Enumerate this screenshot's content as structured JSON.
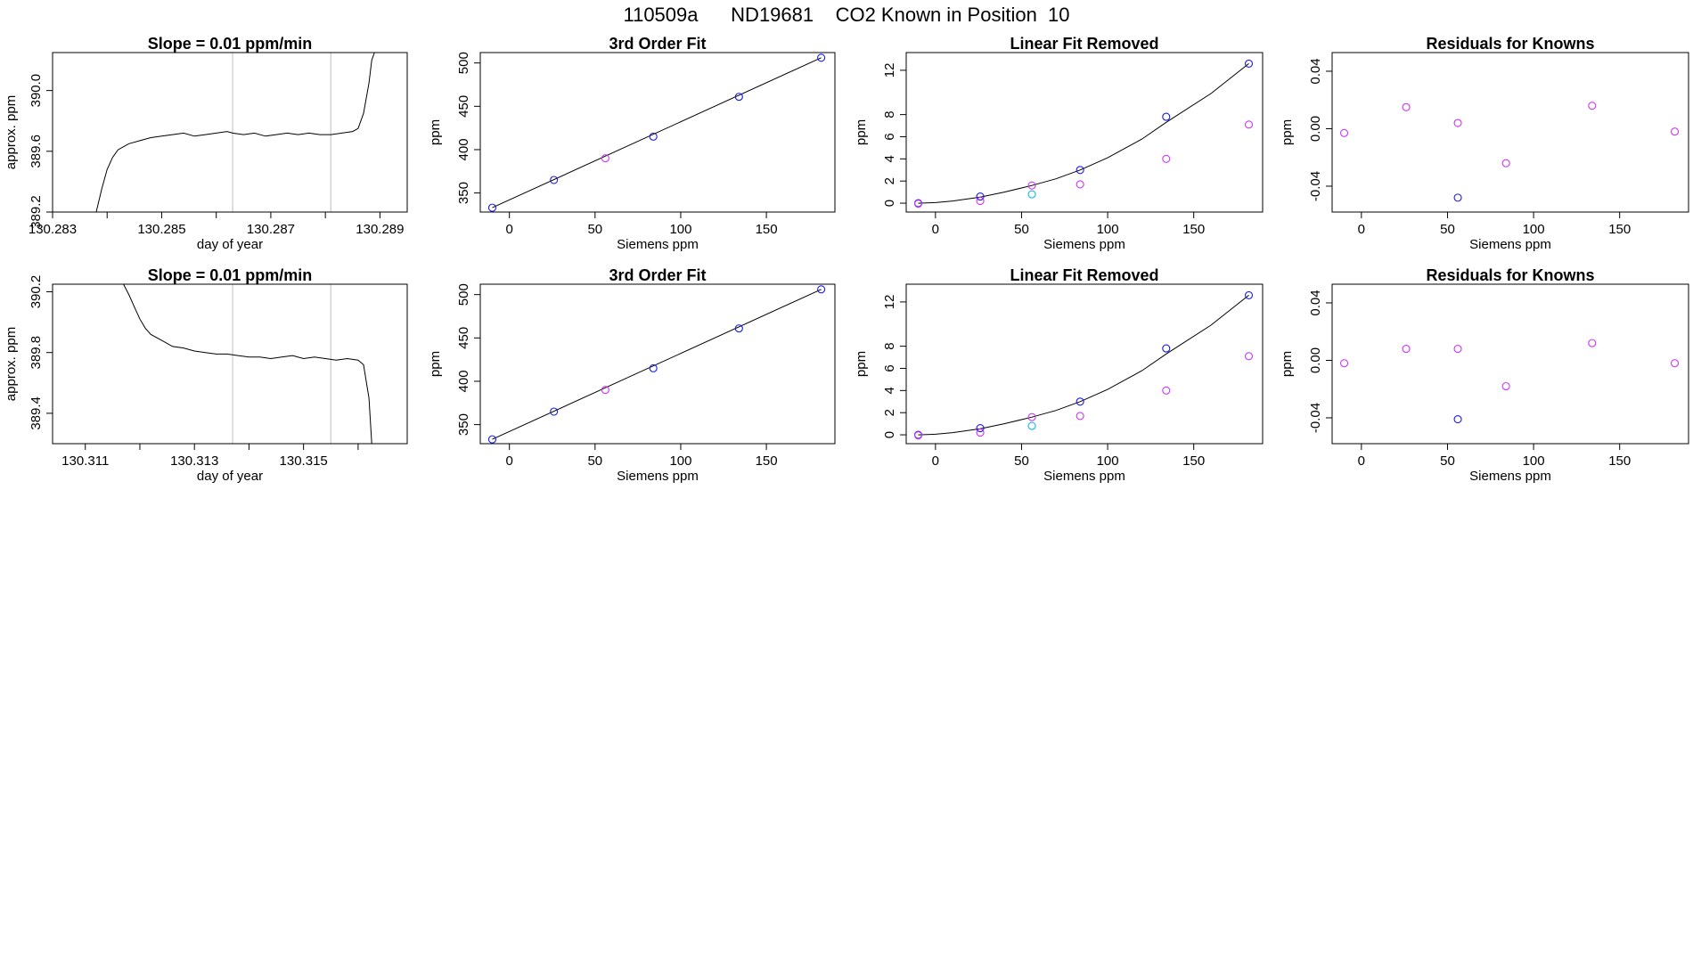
{
  "title": "110509a      ND19681    CO2 Known in Position  10",
  "colors": {
    "series_line": "#000000",
    "known": "#1a1ae6",
    "raw": "#cc33ff",
    "highlight": "#1ab8e6",
    "vline": "#c8c8c8",
    "mark": "#ff6666"
  },
  "chart_data": [
    {
      "type": "line",
      "title": "Slope =  0.01  ppm/min",
      "xlabel": "day of year",
      "ylabel": "approx. ppm",
      "xlim": [
        130.283,
        130.2895
      ],
      "ylim": [
        389.2,
        390.25
      ],
      "xticks": [
        130.283,
        130.284,
        130.285,
        130.286,
        130.287,
        130.288,
        130.289
      ],
      "xtick_labels": [
        "130.283",
        "",
        "130.285",
        "",
        "130.287",
        "",
        "130.289"
      ],
      "yticks": [
        389.2,
        389.6,
        390.0
      ],
      "ytick_labels": [
        "389.2",
        "389.6",
        "390.0"
      ],
      "vlines": [
        130.2863,
        130.2881
      ],
      "series": [
        {
          "name": "trace",
          "x": [
            130.2838,
            130.2839,
            130.284,
            130.2841,
            130.2842,
            130.2843,
            130.2844,
            130.2846,
            130.2848,
            130.285,
            130.2852,
            130.2854,
            130.2856,
            130.2858,
            130.286,
            130.2862,
            130.2863,
            130.2865,
            130.2867,
            130.2869,
            130.2871,
            130.2873,
            130.2875,
            130.2877,
            130.2879,
            130.2881,
            130.2883,
            130.2885,
            130.2886,
            130.2887,
            130.2888,
            130.28885,
            130.2889
          ],
          "values": [
            389.2,
            389.35,
            389.48,
            389.56,
            389.61,
            389.63,
            389.65,
            389.67,
            389.69,
            389.7,
            389.71,
            389.72,
            389.7,
            389.71,
            389.72,
            389.73,
            389.72,
            389.71,
            389.72,
            389.7,
            389.71,
            389.72,
            389.71,
            389.72,
            389.71,
            389.71,
            389.72,
            389.73,
            389.75,
            389.85,
            390.05,
            390.2,
            390.25
          ]
        }
      ]
    },
    {
      "type": "scatter",
      "title": "3rd Order Fit",
      "xlabel": "Siemens ppm",
      "ylabel": "ppm",
      "xlim": [
        -17,
        190
      ],
      "ylim": [
        328,
        512
      ],
      "xticks": [
        0,
        50,
        100,
        150
      ],
      "xtick_labels": [
        "0",
        "50",
        "100",
        "150"
      ],
      "yticks": [
        350,
        400,
        450,
        500
      ],
      "ytick_labels": [
        "350",
        "400",
        "450",
        "500"
      ],
      "fit": {
        "x": [
          -10,
          182
        ],
        "values": [
          333,
          506
        ]
      },
      "points": [
        {
          "x": -10,
          "y": 333,
          "color": "known"
        },
        {
          "x": 26,
          "y": 365,
          "color": "known"
        },
        {
          "x": 56,
          "y": 390,
          "color": "raw"
        },
        {
          "x": 84,
          "y": 415,
          "color": "known"
        },
        {
          "x": 134,
          "y": 461,
          "color": "known"
        },
        {
          "x": 182,
          "y": 506,
          "color": "known"
        }
      ]
    },
    {
      "type": "scatter",
      "title": "Linear Fit Removed",
      "xlabel": "Siemens ppm",
      "ylabel": "ppm",
      "xlim": [
        -17,
        190
      ],
      "ylim": [
        -0.8,
        13.6
      ],
      "xticks": [
        0,
        50,
        100,
        150
      ],
      "xtick_labels": [
        "0",
        "50",
        "100",
        "150"
      ],
      "yticks": [
        0,
        2,
        4,
        6,
        8,
        12
      ],
      "ytick_labels": [
        "0",
        "2",
        "4",
        "6",
        "8",
        "12"
      ],
      "fit": {
        "x": [
          -10,
          0,
          10,
          26,
          40,
          56,
          70,
          84,
          100,
          120,
          134,
          160,
          182
        ],
        "values": [
          0,
          0.05,
          0.2,
          0.55,
          1.0,
          1.6,
          2.2,
          3.0,
          4.1,
          5.8,
          7.3,
          9.9,
          12.6
        ]
      },
      "points": [
        {
          "x": -10,
          "y": 0,
          "color": "known"
        },
        {
          "x": -10,
          "y": -0.05,
          "color": "raw"
        },
        {
          "x": 26,
          "y": 0.6,
          "color": "known"
        },
        {
          "x": 26,
          "y": 0.2,
          "color": "raw"
        },
        {
          "x": 56,
          "y": 1.6,
          "color": "raw"
        },
        {
          "x": 56,
          "y": 0.8,
          "color": "highlight"
        },
        {
          "x": 84,
          "y": 3.0,
          "color": "known"
        },
        {
          "x": 84,
          "y": 1.7,
          "color": "raw"
        },
        {
          "x": 134,
          "y": 7.8,
          "color": "known"
        },
        {
          "x": 134,
          "y": 4.0,
          "color": "raw"
        },
        {
          "x": 182,
          "y": 12.6,
          "color": "known"
        },
        {
          "x": 182,
          "y": 7.1,
          "color": "raw"
        }
      ]
    },
    {
      "type": "scatter",
      "title": "Residuals for Knowns",
      "xlabel": "Siemens ppm",
      "ylabel": "ppm",
      "xlim": [
        -17,
        190
      ],
      "ylim": [
        -0.058,
        0.053
      ],
      "xticks": [
        0,
        50,
        100,
        150
      ],
      "xtick_labels": [
        "0",
        "50",
        "100",
        "150"
      ],
      "yticks": [
        -0.04,
        0.0,
        0.04
      ],
      "ytick_labels": [
        "-0.04",
        "0.00",
        "0.04"
      ],
      "points": [
        {
          "x": -10,
          "y": -0.003,
          "color": "raw"
        },
        {
          "x": 26,
          "y": 0.015,
          "color": "raw"
        },
        {
          "x": 56,
          "y": 0.004,
          "color": "raw"
        },
        {
          "x": 56,
          "y": -0.048,
          "color": "known"
        },
        {
          "x": 84,
          "y": -0.024,
          "color": "raw"
        },
        {
          "x": 134,
          "y": 0.016,
          "color": "raw"
        },
        {
          "x": 182,
          "y": -0.002,
          "color": "raw"
        }
      ]
    },
    {
      "type": "line",
      "title": "Slope =  0.01  ppm/min",
      "xlabel": "day of year",
      "ylabel": "approx. ppm",
      "xlim": [
        130.3104,
        130.3169
      ],
      "ylim": [
        389.2,
        390.25
      ],
      "xticks": [
        130.311,
        130.312,
        130.313,
        130.314,
        130.315,
        130.316
      ],
      "xtick_labels": [
        "130.311",
        "",
        "130.313",
        "",
        "130.315",
        ""
      ],
      "yticks": [
        389.4,
        389.8,
        390.2
      ],
      "ytick_labels": [
        "389.4",
        "389.8",
        "390.2"
      ],
      "vlines": [
        130.3137,
        130.3155
      ],
      "series": [
        {
          "name": "trace",
          "x": [
            130.3117,
            130.3118,
            130.3119,
            130.312,
            130.3121,
            130.3122,
            130.3124,
            130.3126,
            130.3128,
            130.313,
            130.3132,
            130.3134,
            130.3136,
            130.3138,
            130.314,
            130.3142,
            130.3144,
            130.3146,
            130.3148,
            130.315,
            130.3152,
            130.3154,
            130.3156,
            130.3158,
            130.316,
            130.3161,
            130.3162,
            130.31625
          ],
          "values": [
            390.25,
            390.18,
            390.1,
            390.02,
            389.96,
            389.92,
            389.88,
            389.84,
            389.83,
            389.81,
            389.8,
            389.79,
            389.79,
            389.78,
            389.77,
            389.77,
            389.76,
            389.77,
            389.78,
            389.76,
            389.77,
            389.76,
            389.75,
            389.76,
            389.75,
            389.72,
            389.5,
            389.2
          ]
        }
      ]
    },
    {
      "type": "scatter",
      "title": "3rd Order Fit",
      "xlabel": "Siemens ppm",
      "ylabel": "ppm",
      "xlim": [
        -17,
        190
      ],
      "ylim": [
        328,
        512
      ],
      "xticks": [
        0,
        50,
        100,
        150
      ],
      "xtick_labels": [
        "0",
        "50",
        "100",
        "150"
      ],
      "yticks": [
        350,
        400,
        450,
        500
      ],
      "ytick_labels": [
        "350",
        "400",
        "450",
        "500"
      ],
      "fit": {
        "x": [
          -10,
          182
        ],
        "values": [
          333,
          506
        ]
      },
      "points": [
        {
          "x": -10,
          "y": 333,
          "color": "known"
        },
        {
          "x": 26,
          "y": 365,
          "color": "known"
        },
        {
          "x": 56,
          "y": 390,
          "color": "raw"
        },
        {
          "x": 84,
          "y": 415,
          "color": "known"
        },
        {
          "x": 134,
          "y": 461,
          "color": "known"
        },
        {
          "x": 182,
          "y": 506,
          "color": "known"
        }
      ]
    },
    {
      "type": "scatter",
      "title": "Linear Fit Removed",
      "xlabel": "Siemens ppm",
      "ylabel": "ppm",
      "xlim": [
        -17,
        190
      ],
      "ylim": [
        -0.8,
        13.6
      ],
      "xticks": [
        0,
        50,
        100,
        150
      ],
      "xtick_labels": [
        "0",
        "50",
        "100",
        "150"
      ],
      "yticks": [
        0,
        2,
        4,
        6,
        8,
        12
      ],
      "ytick_labels": [
        "0",
        "2",
        "4",
        "6",
        "8",
        "12"
      ],
      "fit": {
        "x": [
          -10,
          0,
          10,
          26,
          40,
          56,
          70,
          84,
          100,
          120,
          134,
          160,
          182
        ],
        "values": [
          0,
          0.05,
          0.2,
          0.55,
          1.0,
          1.6,
          2.2,
          3.0,
          4.1,
          5.8,
          7.3,
          9.9,
          12.6
        ]
      },
      "points": [
        {
          "x": -10,
          "y": 0,
          "color": "known"
        },
        {
          "x": -10,
          "y": -0.05,
          "color": "raw"
        },
        {
          "x": 26,
          "y": 0.6,
          "color": "known"
        },
        {
          "x": 26,
          "y": 0.2,
          "color": "raw"
        },
        {
          "x": 56,
          "y": 1.6,
          "color": "raw"
        },
        {
          "x": 56,
          "y": 0.8,
          "color": "highlight"
        },
        {
          "x": 84,
          "y": 3.0,
          "color": "known"
        },
        {
          "x": 84,
          "y": 1.7,
          "color": "raw"
        },
        {
          "x": 134,
          "y": 7.8,
          "color": "known"
        },
        {
          "x": 134,
          "y": 4.0,
          "color": "raw"
        },
        {
          "x": 182,
          "y": 12.6,
          "color": "known"
        },
        {
          "x": 182,
          "y": 7.1,
          "color": "raw"
        }
      ]
    },
    {
      "type": "scatter",
      "title": "Residuals for Knowns",
      "xlabel": "Siemens ppm",
      "ylabel": "ppm",
      "xlim": [
        -17,
        190
      ],
      "ylim": [
        -0.058,
        0.053
      ],
      "xticks": [
        0,
        50,
        100,
        150
      ],
      "xtick_labels": [
        "0",
        "50",
        "100",
        "150"
      ],
      "yticks": [
        -0.04,
        0.0,
        0.04
      ],
      "ytick_labels": [
        "-0.04",
        "0.00",
        "0.04"
      ],
      "points": [
        {
          "x": -10,
          "y": -0.002,
          "color": "raw"
        },
        {
          "x": 26,
          "y": 0.008,
          "color": "raw"
        },
        {
          "x": 56,
          "y": 0.008,
          "color": "raw"
        },
        {
          "x": 56,
          "y": -0.041,
          "color": "known"
        },
        {
          "x": 84,
          "y": -0.018,
          "color": "raw"
        },
        {
          "x": 134,
          "y": 0.012,
          "color": "raw"
        },
        {
          "x": 182,
          "y": -0.002,
          "color": "raw"
        }
      ]
    }
  ]
}
